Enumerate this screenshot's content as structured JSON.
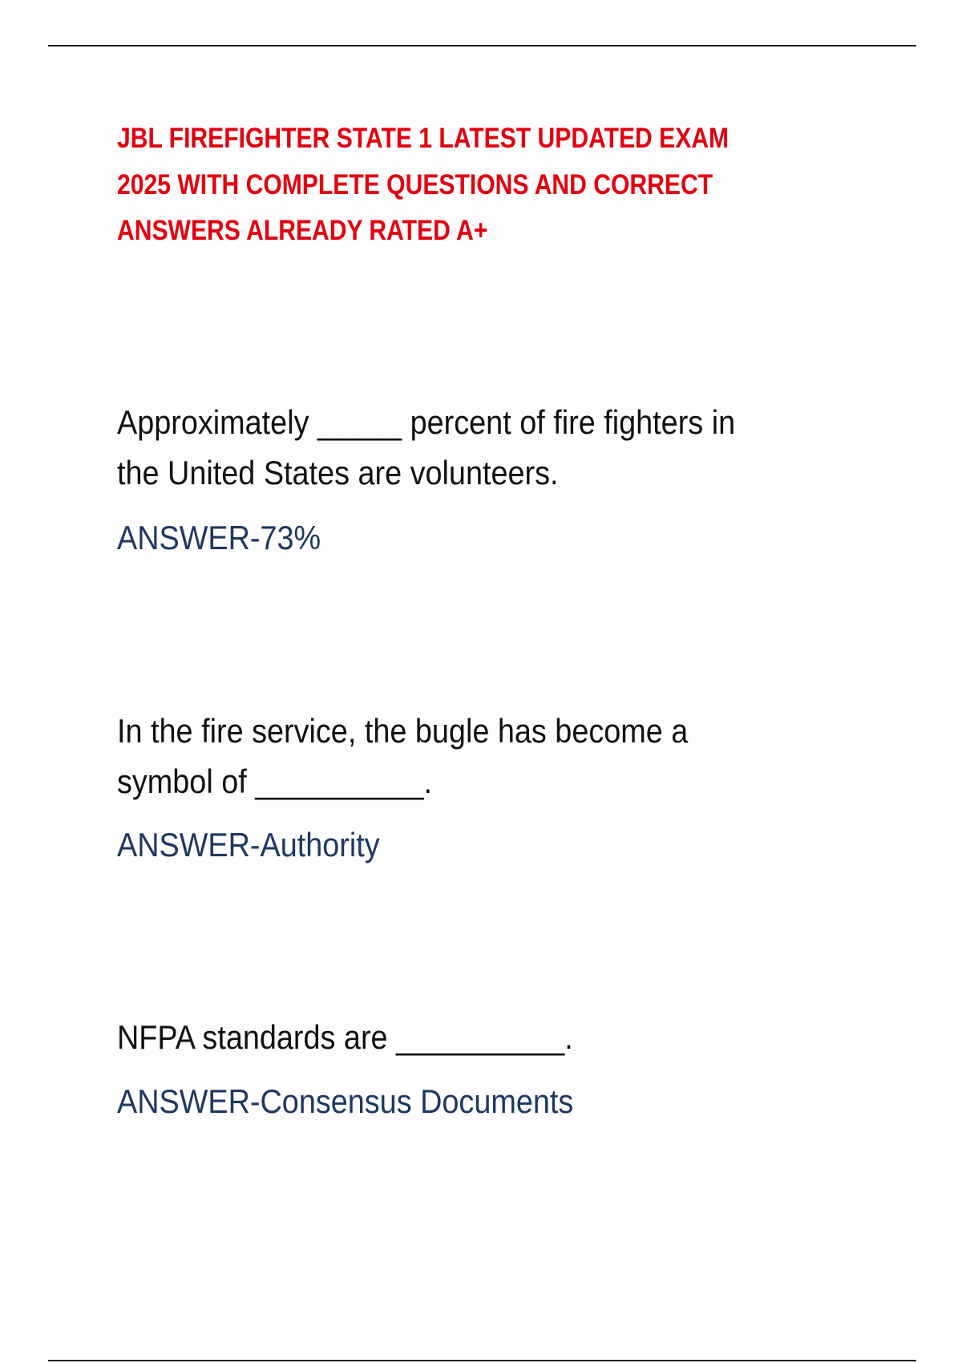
{
  "title_lines": [
    "JBL FIREFIGHTER STATE 1 LATEST UPDATED EXAM",
    "2025 WITH COMPLETE QUESTIONS AND CORRECT",
    "ANSWERS ALREADY RATED A+"
  ],
  "questions": [
    {
      "lines": [
        "Approximately _____ percent of fire fighters in",
        "the United States are volunteers."
      ],
      "answer": "ANSWER-73%"
    },
    {
      "lines": [
        "In the fire service, the bugle has become a",
        "symbol of __________."
      ],
      "answer": "ANSWER-Authority"
    },
    {
      "lines": [
        "NFPA standards are __________."
      ],
      "answer": "ANSWER-Consensus Documents"
    }
  ],
  "colors": {
    "title": "#e3000f",
    "answer": "#1f3864",
    "question": "#111111"
  }
}
